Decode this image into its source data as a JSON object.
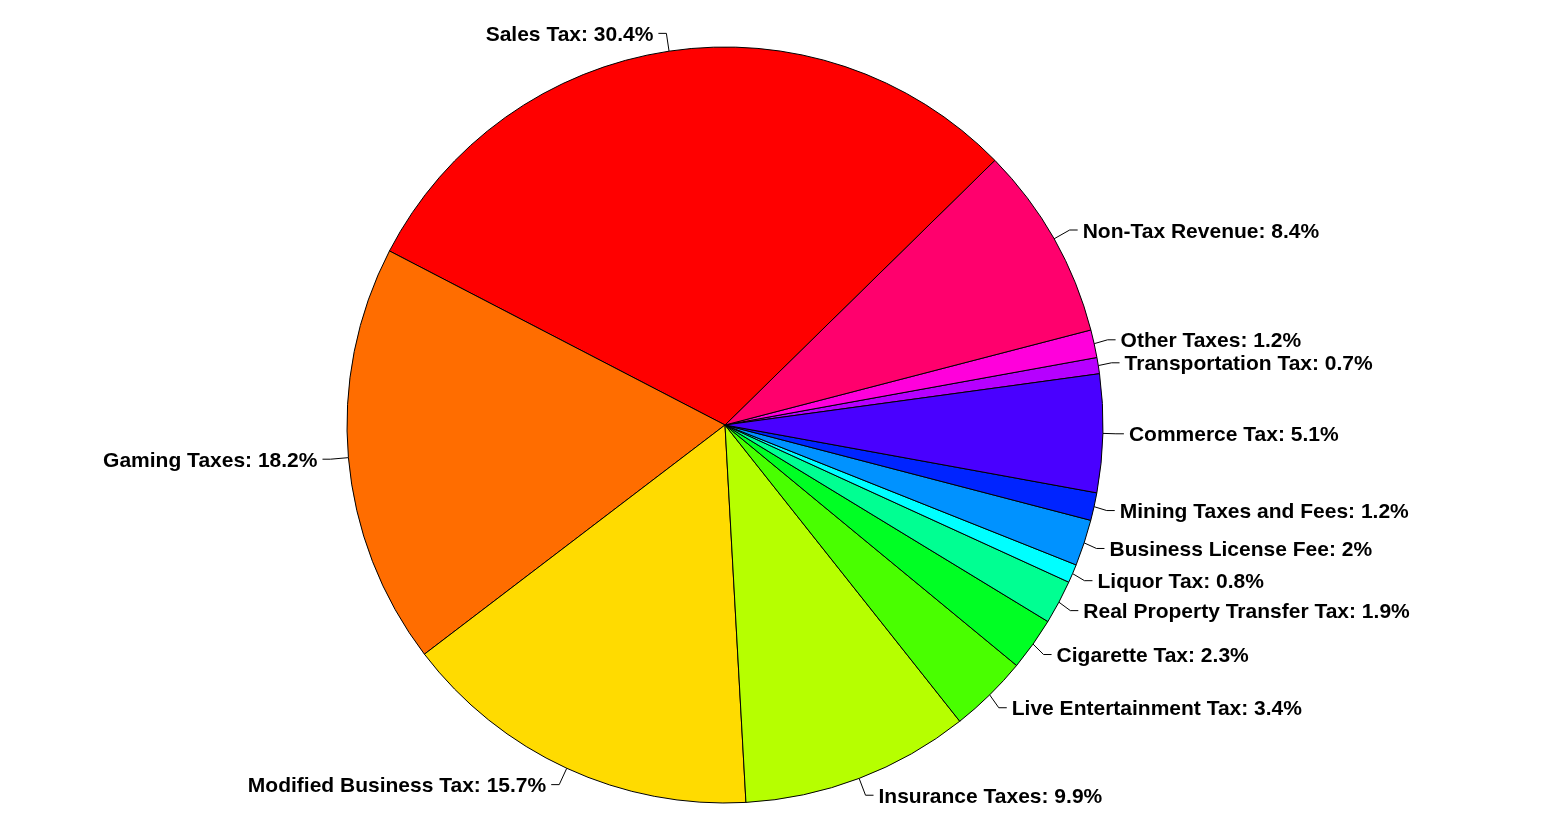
{
  "chart_data": {
    "type": "pie",
    "categories": [
      "Transportation Tax",
      "Other Taxes",
      "Non-Tax Revenue",
      "Sales Tax",
      "Gaming Taxes",
      "Modified Business Tax",
      "Insurance Taxes",
      "Live Entertainment Tax",
      "Cigarette Tax",
      "Real Property Transfer Tax",
      "Liquor Tax",
      "Business License Fee",
      "Mining Taxes and Fees",
      "Commerce Tax"
    ],
    "values": [
      0.7,
      1.2,
      8.4,
      30.4,
      18.2,
      15.7,
      9.9,
      3.4,
      2.3,
      1.9,
      0.8,
      2,
      1.2,
      5.1
    ],
    "value_labels": [
      "0.7%",
      "1.2%",
      "8.4%",
      "30.4%",
      "18.2%",
      "15.7%",
      "9.9%",
      "3.4%",
      "2.3%",
      "1.9%",
      "0.8%",
      "2%",
      "1.2%",
      "5.1%"
    ],
    "colors": [
      "#b600ff",
      "#ff00db",
      "#ff006d",
      "#ff0000",
      "#ff6d00",
      "#ffdb00",
      "#b6ff00",
      "#49ff00",
      "#00ff24",
      "#00ff92",
      "#00ffff",
      "#0092ff",
      "#0024ff",
      "#4900ff"
    ],
    "legend": false
  }
}
